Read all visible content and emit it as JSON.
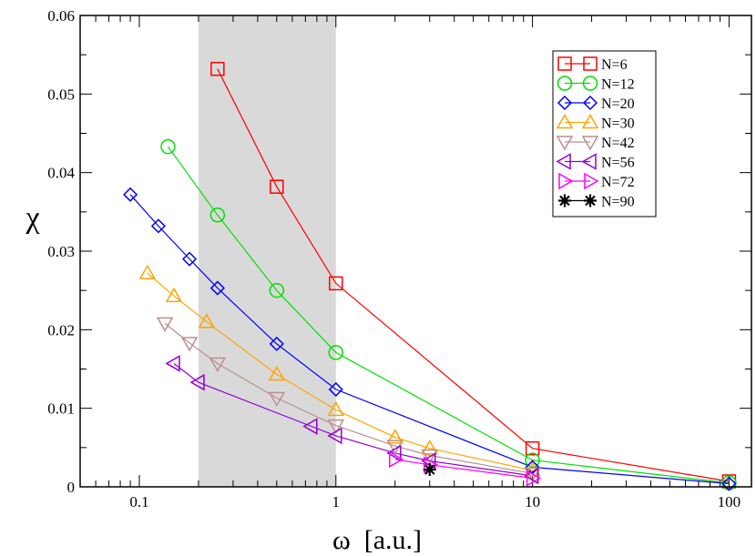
{
  "chart_data": {
    "type": "line",
    "xscale": "log",
    "xlabel": "ω  [a.u.]",
    "ylabel": "χ",
    "xlim": [
      0.05,
      130
    ],
    "ylim": [
      0,
      0.06
    ],
    "x_ticks": [
      {
        "value": 0.1,
        "label": "0.1"
      },
      {
        "value": 1,
        "label": "1"
      },
      {
        "value": 10,
        "label": "10"
      },
      {
        "value": 100,
        "label": "100"
      }
    ],
    "y_ticks": [
      {
        "value": 0,
        "label": "0"
      },
      {
        "value": 0.01,
        "label": "0.01"
      },
      {
        "value": 0.02,
        "label": "0.02"
      },
      {
        "value": 0.03,
        "label": "0.03"
      },
      {
        "value": 0.04,
        "label": "0.04"
      },
      {
        "value": 0.05,
        "label": "0.05"
      },
      {
        "value": 0.06,
        "label": "0.06"
      }
    ],
    "shaded_region": {
      "x_from": 0.2,
      "x_to": 1.0,
      "color": "#d9d9d9"
    },
    "legend_position": "top-right",
    "series": [
      {
        "name": "N=6",
        "marker": "square",
        "color": "#ff0000",
        "x": [
          0.25,
          0.5,
          1,
          10,
          100
        ],
        "y": [
          0.0532,
          0.0382,
          0.0259,
          0.0049,
          0.0007
        ]
      },
      {
        "name": "N=12",
        "marker": "circle",
        "color": "#00e000",
        "x": [
          0.14,
          0.25,
          0.5,
          1,
          10,
          100
        ],
        "y": [
          0.0433,
          0.0346,
          0.025,
          0.0171,
          0.0034,
          0.0005
        ]
      },
      {
        "name": "N=20",
        "marker": "diamond",
        "color": "#0000ff",
        "x": [
          0.09,
          0.125,
          0.18,
          0.25,
          0.5,
          1,
          10,
          100
        ],
        "y": [
          0.0372,
          0.0332,
          0.029,
          0.0253,
          0.0182,
          0.0124,
          0.0025,
          0.0004
        ]
      },
      {
        "name": "N=30",
        "marker": "triangle-up",
        "color": "#ffa500",
        "x": [
          0.11,
          0.15,
          0.22,
          0.5,
          1,
          2,
          3,
          10
        ],
        "y": [
          0.0272,
          0.0243,
          0.021,
          0.0143,
          0.0098,
          0.0063,
          0.0049,
          0.0021
        ]
      },
      {
        "name": "N=42",
        "marker": "triangle-down",
        "color": "#bc8f8f",
        "x": [
          0.135,
          0.18,
          0.25,
          0.5,
          1,
          2,
          3,
          10
        ],
        "y": [
          0.0208,
          0.0183,
          0.0157,
          0.0113,
          0.0078,
          0.0052,
          0.004,
          0.0017
        ]
      },
      {
        "name": "N=56",
        "marker": "triangle-left",
        "color": "#9400d3",
        "x": [
          0.15,
          0.2,
          0.75,
          1,
          2,
          3,
          10
        ],
        "y": [
          0.0157,
          0.0133,
          0.0077,
          0.0065,
          0.0043,
          0.0033,
          0.0014
        ]
      },
      {
        "name": "N=72",
        "marker": "triangle-right",
        "color": "#ff00ff",
        "x": [
          2,
          3,
          10
        ],
        "y": [
          0.0035,
          0.0028,
          0.0011
        ]
      },
      {
        "name": "N=90",
        "marker": "star",
        "color": "#000000",
        "x": [
          3
        ],
        "y": [
          0.0022
        ]
      }
    ]
  }
}
